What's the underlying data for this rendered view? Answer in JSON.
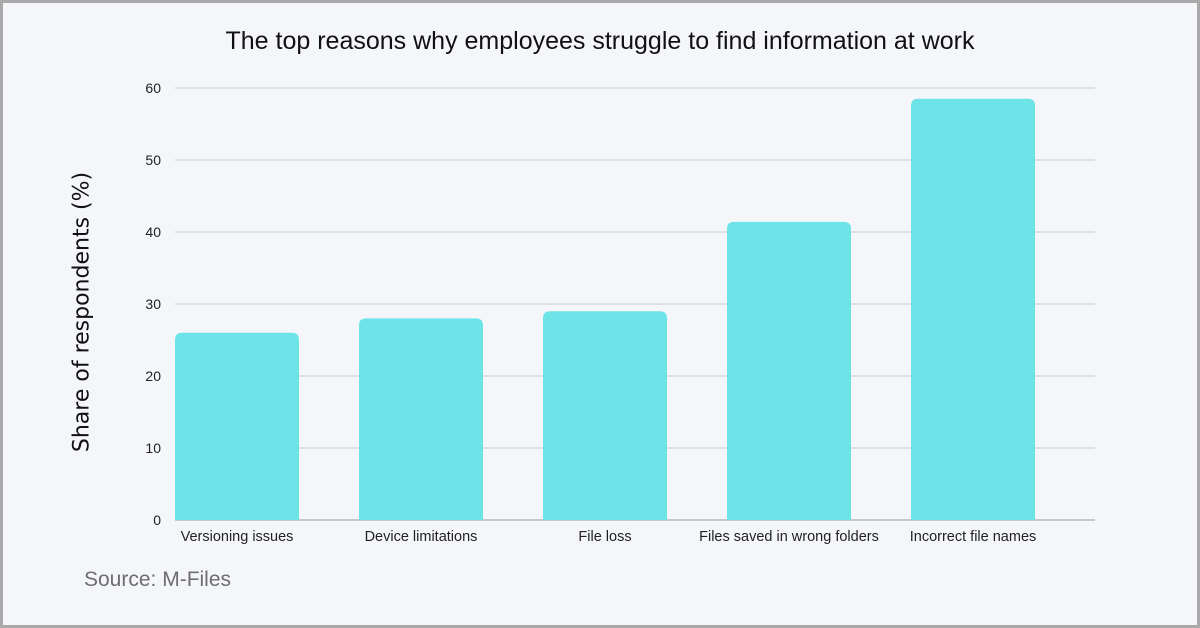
{
  "chart_data": {
    "type": "bar",
    "title": "The top reasons why employees struggle to find information at work",
    "xlabel": "",
    "ylabel": "Share of respondents  (%)",
    "categories": [
      "Versioning issues",
      "Device limitations",
      "File loss",
      "Files saved in wrong folders",
      "Incorrect file names"
    ],
    "values": [
      26,
      28,
      29,
      41.4,
      58.5
    ],
    "ylim": [
      0,
      60
    ],
    "yticks": [
      "0",
      "10",
      "20",
      "30",
      "40",
      "50",
      "60"
    ],
    "grid": true,
    "bar_color": "#6ce4e8"
  },
  "footer": {
    "source": "Source: M-Files"
  }
}
